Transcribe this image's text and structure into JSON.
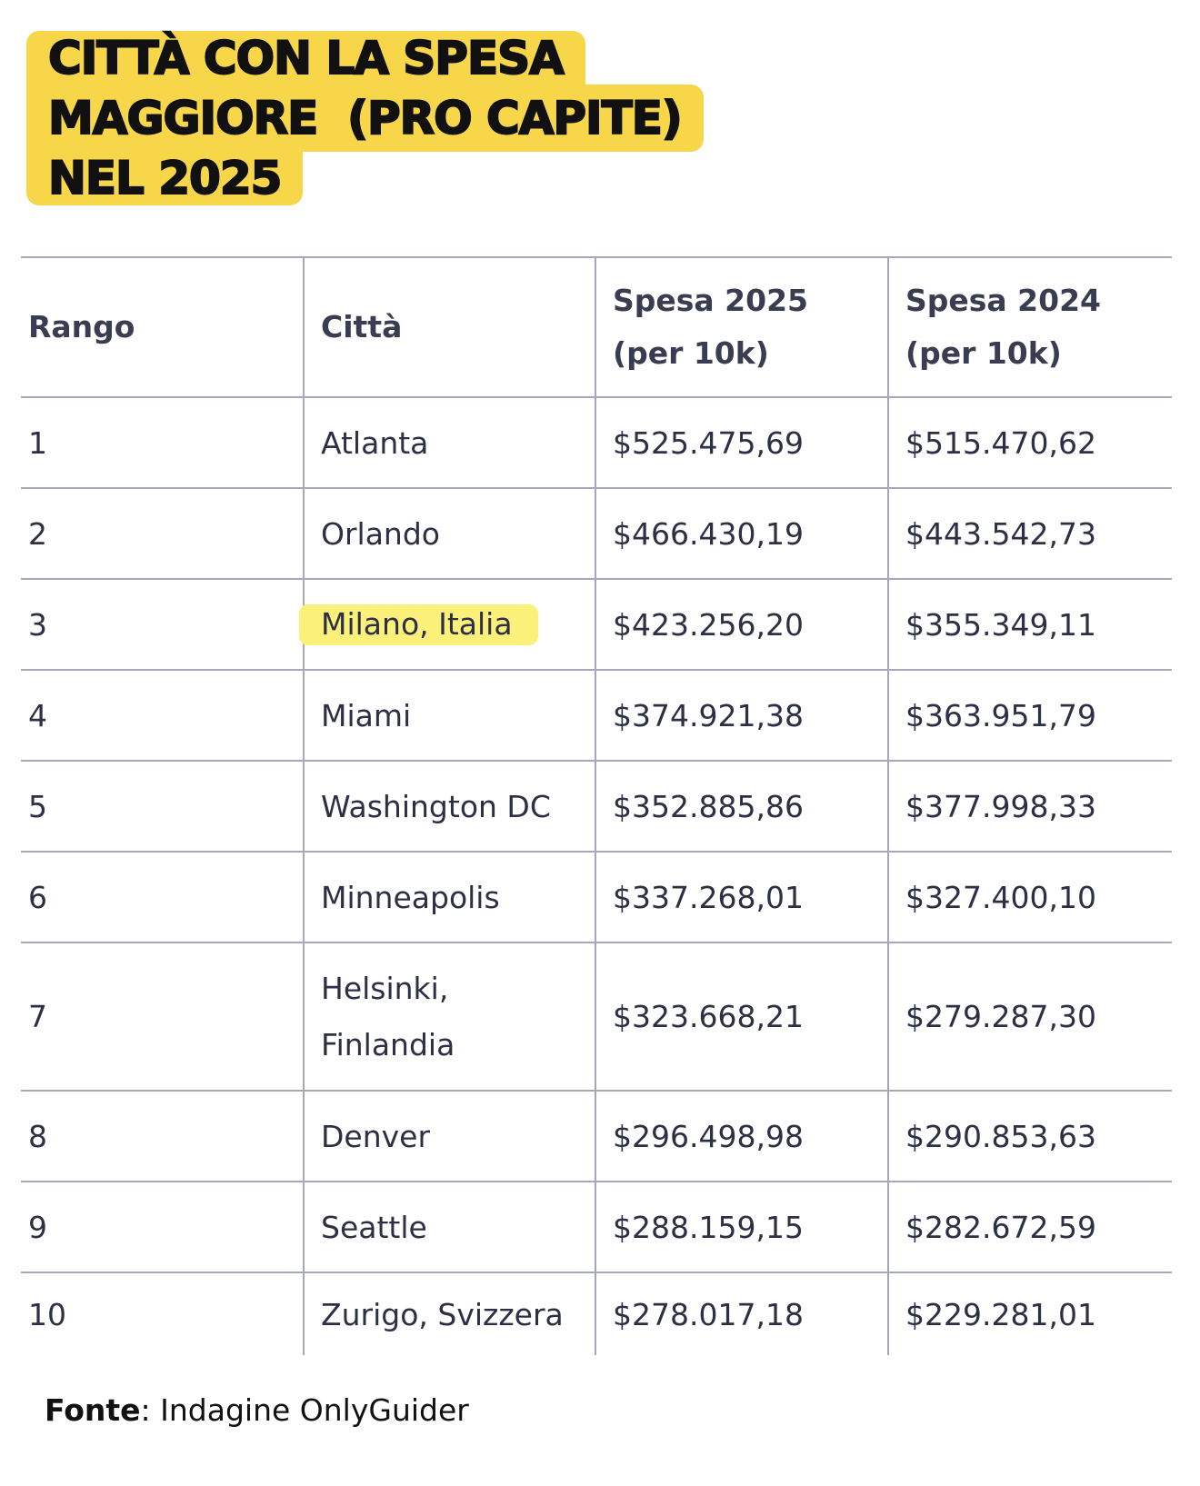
{
  "title": {
    "lines": [
      "CITTÀ CON LA SPESA",
      "MAGGIORE  (PRO CAPITE)",
      "NEL 2025"
    ]
  },
  "table": {
    "header": [
      "Rango",
      "Città",
      "Spesa 2025 (per 10k)",
      "Spesa 2024 (per 10k)"
    ],
    "rows": [
      [
        "1",
        "Atlanta",
        "$525.475,69",
        "$515.470,62"
      ],
      [
        "2",
        "Orlando",
        "$466.430,19",
        "$443.542,73"
      ],
      [
        "3",
        "Milano, Italia",
        "$423.256,20",
        "$355.349,11"
      ],
      [
        "4",
        "Miami",
        "$374.921,38",
        "$363.951,79"
      ],
      [
        "5",
        "Washington DC",
        "$352.885,86",
        "$377.998,33"
      ],
      [
        "6",
        "Minneapolis",
        "$337.268,01",
        "$327.400,10"
      ],
      [
        "7",
        "Helsinki, Finlandia",
        "$323.668,21",
        "$279.287,30"
      ],
      [
        "8",
        "Denver",
        "$296.498,98",
        "$290.853,63"
      ],
      [
        "9",
        "Seattle",
        "$288.159,15",
        "$282.672,59"
      ],
      [
        "10",
        "Zurigo, Svizzera",
        "$278.017,18",
        "$229.281,01"
      ]
    ],
    "highlighted_row": 2
  },
  "footer": {
    "label": "Fonte",
    "text": ": Indagine OnlyGuider"
  }
}
